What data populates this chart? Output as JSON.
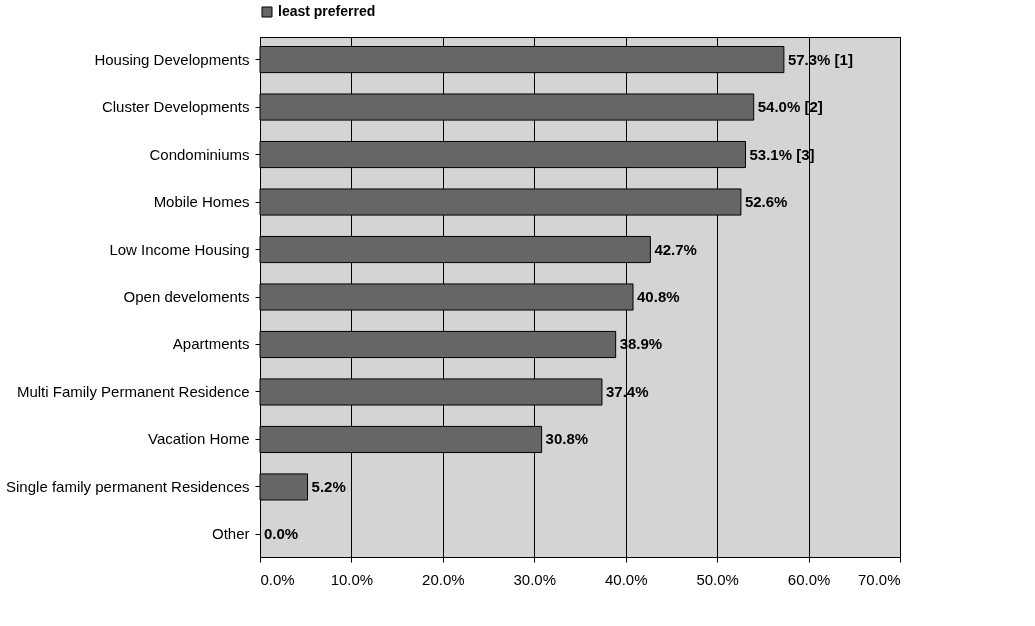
{
  "chart_data": {
    "type": "bar",
    "orientation": "horizontal",
    "categories": [
      "Housing Developments",
      "Cluster Developments",
      "Condominiums",
      "Mobile Homes",
      "Low Income Housing ",
      "Open develoments",
      "Apartments",
      "Multi Family Permanent Residence",
      "Vacation Home",
      "Single family permanent Residences",
      "Other"
    ],
    "series": [
      {
        "name": "least preferred",
        "color": "#666666",
        "values": [
          57.3,
          54.0,
          53.1,
          52.6,
          42.7,
          40.8,
          38.9,
          37.4,
          30.8,
          5.2,
          0.0
        ],
        "value_labels": [
          "57.3% [1]",
          "54.0% [2]",
          "53.1% [3]",
          "52.6%",
          "42.7%",
          "40.8%",
          "38.9%",
          "37.4%",
          "30.8%",
          "5.2%",
          "0.0%"
        ]
      }
    ],
    "xlim": [
      0,
      70
    ],
    "xticks": [
      {
        "value": 0,
        "label": "0.0%"
      },
      {
        "value": 10,
        "label": "10.0%"
      },
      {
        "value": 20,
        "label": "20.0%"
      },
      {
        "value": 30,
        "label": "30.0%"
      },
      {
        "value": 40,
        "label": "40.0%"
      },
      {
        "value": 50,
        "label": "50.0%"
      },
      {
        "value": 60,
        "label": "60.0%"
      },
      {
        "value": 70,
        "label": "70.0%"
      }
    ],
    "grid": "x",
    "legend": "top"
  }
}
